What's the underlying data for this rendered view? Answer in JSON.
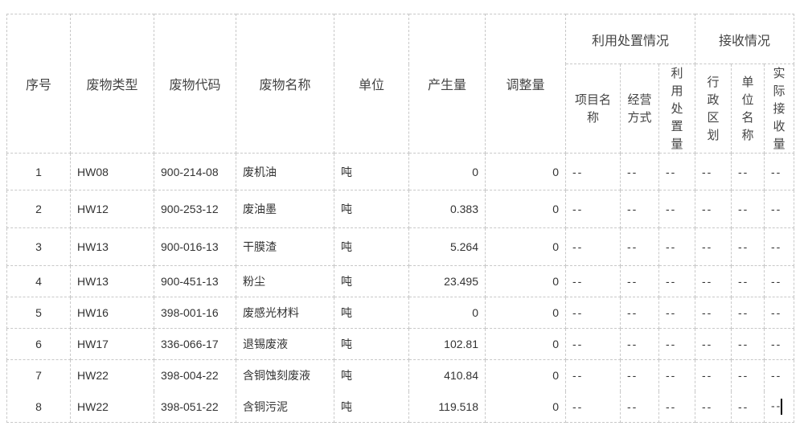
{
  "headers": {
    "seq": "序号",
    "type": "废物类型",
    "code": "废物代码",
    "name": "废物名称",
    "unit": "单位",
    "produced": "产生量",
    "adjust": "调整量",
    "disposal_group": "利用处置情况",
    "receive_group": "接收情况",
    "project_name": "项目名称",
    "operation_mode": "经营方式",
    "disposal_amount": "利用处置量",
    "region": "行政区划",
    "unit_name": "单位名称",
    "actual_received": "实际接收量"
  },
  "rows": [
    {
      "seq": "1",
      "type": "HW08",
      "code": "900-214-08",
      "name": "废机油",
      "unit": "吨",
      "produced": "0",
      "adjust": "0",
      "project": "--",
      "mode": "--",
      "disposal": "--",
      "region": "--",
      "unit_name": "--",
      "received": "--"
    },
    {
      "seq": "2",
      "type": "HW12",
      "code": "900-253-12",
      "name": "废油墨",
      "unit": "吨",
      "produced": "0.383",
      "adjust": "0",
      "project": "--",
      "mode": "--",
      "disposal": "--",
      "region": "--",
      "unit_name": "--",
      "received": "--"
    },
    {
      "seq": "3",
      "type": "HW13",
      "code": "900-016-13",
      "name": "干膜渣",
      "unit": "吨",
      "produced": "5.264",
      "adjust": "0",
      "project": "--",
      "mode": "--",
      "disposal": "--",
      "region": "--",
      "unit_name": "--",
      "received": "--"
    },
    {
      "seq": "4",
      "type": "HW13",
      "code": "900-451-13",
      "name": "粉尘",
      "unit": "吨",
      "produced": "23.495",
      "adjust": "0",
      "project": "--",
      "mode": "--",
      "disposal": "--",
      "region": "--",
      "unit_name": "--",
      "received": "--"
    },
    {
      "seq": "5",
      "type": "HW16",
      "code": "398-001-16",
      "name": "废感光材料",
      "unit": "吨",
      "produced": "0",
      "adjust": "0",
      "project": "--",
      "mode": "--",
      "disposal": "--",
      "region": "--",
      "unit_name": "--",
      "received": "--"
    },
    {
      "seq": "6",
      "type": "HW17",
      "code": "336-066-17",
      "name": "退锡废液",
      "unit": "吨",
      "produced": "102.81",
      "adjust": "0",
      "project": "--",
      "mode": "--",
      "disposal": "--",
      "region": "--",
      "unit_name": "--",
      "received": "--"
    },
    {
      "seq": "7",
      "type": "HW22",
      "code": "398-004-22",
      "name": "含铜蚀刻废液",
      "unit": "吨",
      "produced": "410.84",
      "adjust": "0",
      "project": "--",
      "mode": "--",
      "disposal": "--",
      "region": "--",
      "unit_name": "--",
      "received": "--"
    },
    {
      "seq": "8",
      "type": "HW22",
      "code": "398-051-22",
      "name": "含铜污泥",
      "unit": "吨",
      "produced": "119.518",
      "adjust": "0",
      "project": "--",
      "mode": "--",
      "disposal": "--",
      "region": "--",
      "unit_name": "--",
      "received": "--"
    }
  ]
}
